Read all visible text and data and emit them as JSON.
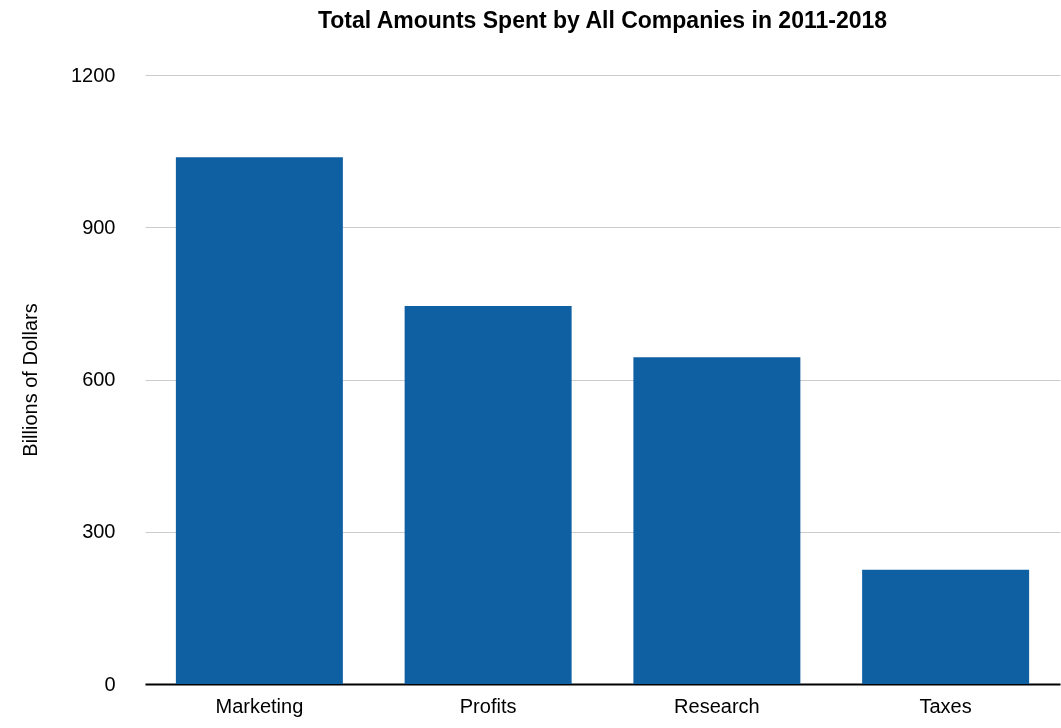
{
  "chart_data": {
    "type": "bar",
    "title": "Total Amounts Spent by All Companies in 2011-2018",
    "ylabel": "Billions of Dollars",
    "categories": [
      "Marketing",
      "Profits",
      "Research",
      "Taxes"
    ],
    "values": [
      1038,
      745,
      644,
      225
    ],
    "color": "#0f5fa3",
    "ylim": [
      0,
      1200
    ],
    "yticks": [
      0,
      300,
      600,
      900,
      1200
    ],
    "grid": "y"
  }
}
